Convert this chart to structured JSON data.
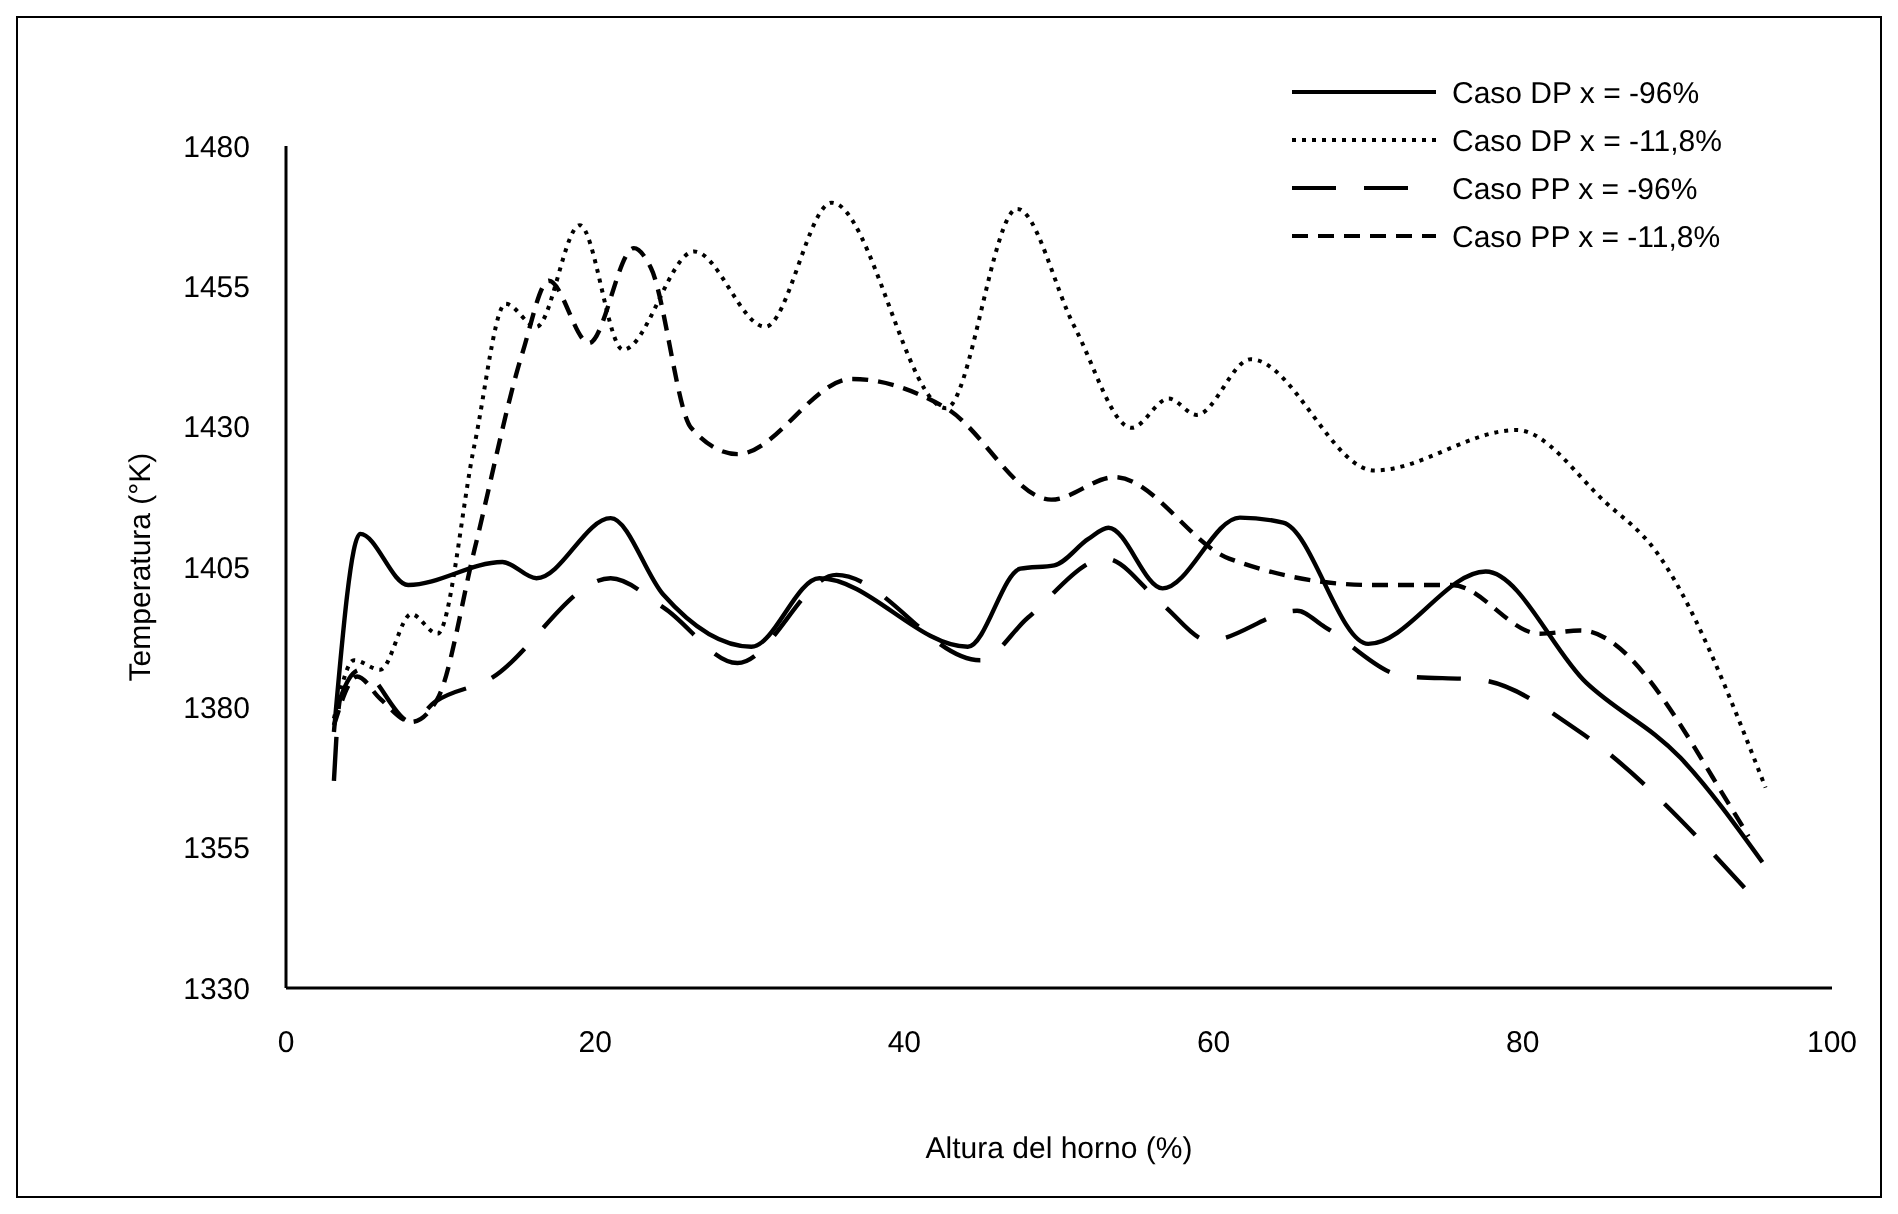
{
  "chart_data": {
    "type": "line",
    "xlabel": "Altura del horno (%)",
    "ylabel": "Temperatura (°K)",
    "xlim": [
      0,
      100
    ],
    "xticks": [
      0,
      20,
      40,
      60,
      80,
      100
    ],
    "ylim": [
      1330,
      1480
    ],
    "yticks": [
      1330,
      1355,
      1380,
      1405,
      1430,
      1455,
      1480
    ],
    "grid": false,
    "legend": "top right",
    "marker": "none",
    "series": [
      {
        "name": "Caso DP x = -96%",
        "color": "#000000",
        "line_style": "solid",
        "x": [
          3.1,
          4.8,
          7.9,
          14.0,
          16.2,
          21.0,
          24.4,
          30.1,
          34.5,
          44.1,
          47.5,
          49.7,
          51.9,
          53.2,
          56.7,
          61.7,
          64.5,
          70.0,
          77.6,
          84.1,
          90.2,
          95.5
        ],
        "values": [
          1375.6,
          1410.9,
          1401.8,
          1405.9,
          1403.0,
          1413.7,
          1400.1,
          1390.8,
          1403.0,
          1390.8,
          1404.7,
          1405.3,
          1410.0,
          1412.0,
          1401.2,
          1413.8,
          1412.9,
          1391.3,
          1404.2,
          1384.4,
          1371.0,
          1352.4
        ]
      },
      {
        "name": "Caso DP x = -11,8%",
        "color": "#000000",
        "line_style": "dotted",
        "x": [
          3.1,
          4.4,
          6.1,
          8.1,
          9.8,
          12.2,
          14.2,
          16.2,
          19.0,
          21.8,
          26.4,
          31.0,
          35.3,
          42.7,
          47.3,
          51.0,
          54.7,
          57.1,
          58.9,
          62.4,
          70.4,
          79.6,
          85.4,
          88.5,
          95.7
        ],
        "values": [
          1378.0,
          1388.4,
          1386.7,
          1396.6,
          1393.1,
          1426.9,
          1451.9,
          1447.8,
          1465.9,
          1443.7,
          1461.2,
          1447.8,
          1469.9,
          1433.3,
          1468.8,
          1447.8,
          1429.8,
          1435.0,
          1432.1,
          1442.0,
          1422.2,
          1429.4,
          1416.4,
          1408.2,
          1365.7
        ]
      },
      {
        "name": "Caso PP x = -96%",
        "color": "#000000",
        "line_style": "dashed",
        "x": [
          3.1,
          3.5,
          4.8,
          8.1,
          9.6,
          13.1,
          21.0,
          24.4,
          29.2,
          35.6,
          44.9,
          48.0,
          53.0,
          56.7,
          59.7,
          65.4,
          67.2,
          72.4,
          77.2,
          83.7,
          94.6
        ],
        "values": [
          1366.9,
          1381.5,
          1386.7,
          1377.4,
          1380.9,
          1384.9,
          1403.0,
          1397.8,
          1387.9,
          1403.6,
          1388.4,
          1396.0,
          1406.5,
          1398.3,
          1391.9,
          1397.2,
          1394.3,
          1385.5,
          1384.9,
          1375.6,
          1347.1
        ]
      },
      {
        "name": "Caso PP x = -11,8%",
        "color": "#000000",
        "line_style": "dashed",
        "x": [
          3.1,
          4.6,
          6.1,
          8.1,
          9.8,
          12.2,
          15.3,
          17.0,
          19.6,
          22.5,
          23.6,
          26.2,
          29.2,
          36.6,
          42.7,
          49.5,
          53.6,
          61.0,
          70.2,
          75.4,
          81.1,
          83.7,
          93.7,
          94.6
        ],
        "values": [
          1376.8,
          1385.5,
          1381.5,
          1377.4,
          1381.5,
          1408.2,
          1443.2,
          1456.0,
          1444.9,
          1461.8,
          1458.3,
          1429.8,
          1425.1,
          1438.5,
          1433.3,
          1417.0,
          1421.0,
          1406.5,
          1401.8,
          1401.8,
          1393.1,
          1393.7,
          1361.1,
          1357.0
        ]
      }
    ]
  }
}
